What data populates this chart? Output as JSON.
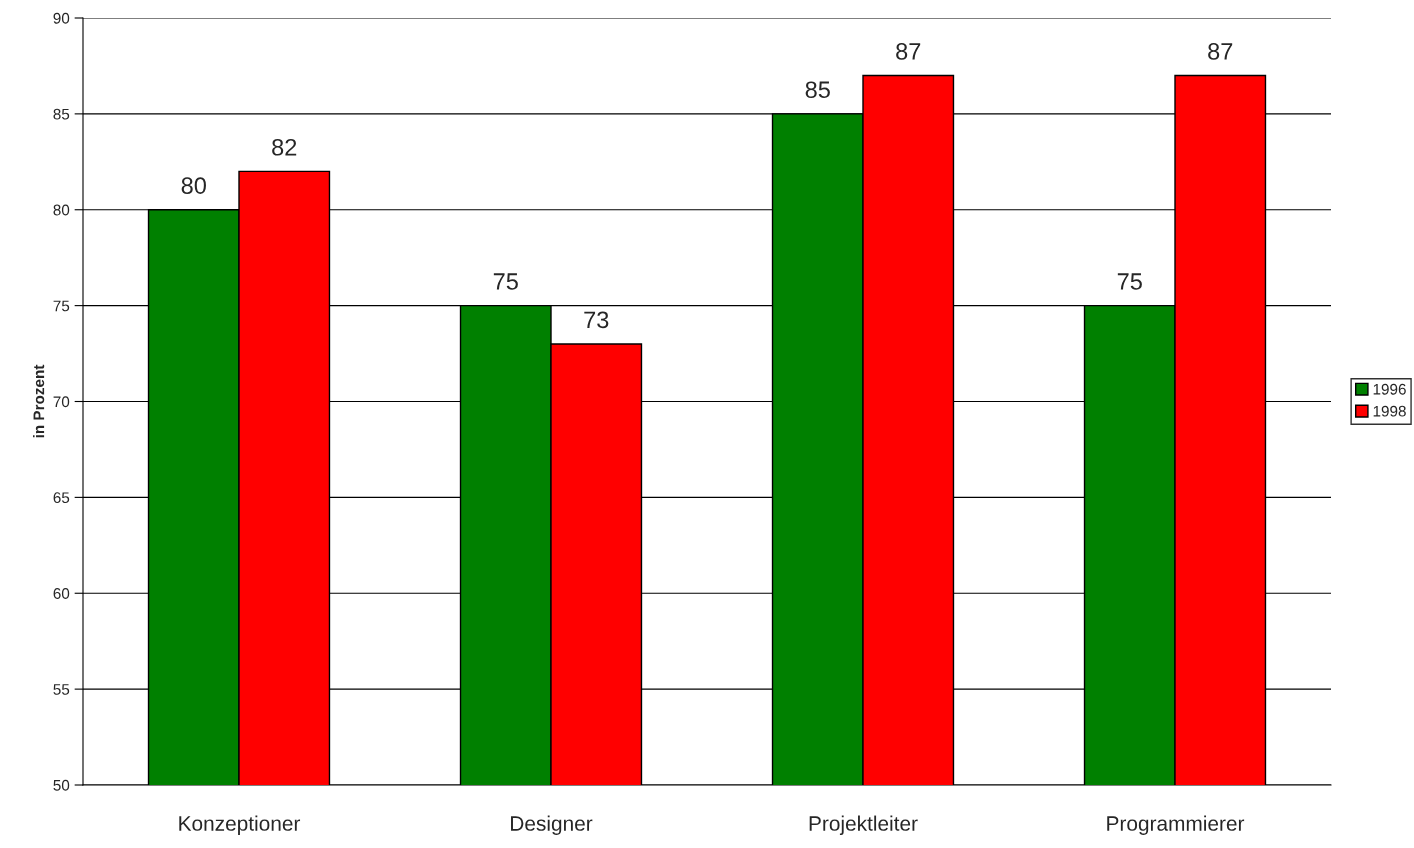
{
  "chart_data": {
    "type": "bar",
    "ylabel": "in Prozent",
    "categories": [
      "Konzeptioner",
      "Designer",
      "Projektleiter",
      "Programmierer"
    ],
    "series": [
      {
        "name": "1996",
        "color": "#008000",
        "values": [
          80,
          75,
          85,
          75
        ]
      },
      {
        "name": "1998",
        "color": "#ff0000",
        "values": [
          82,
          73,
          87,
          87
        ]
      }
    ],
    "ylim": [
      50,
      90
    ],
    "yticks": [
      50,
      55,
      60,
      65,
      70,
      75,
      80,
      85,
      90
    ],
    "grid": "y",
    "legend": "right",
    "data_labels": true
  }
}
